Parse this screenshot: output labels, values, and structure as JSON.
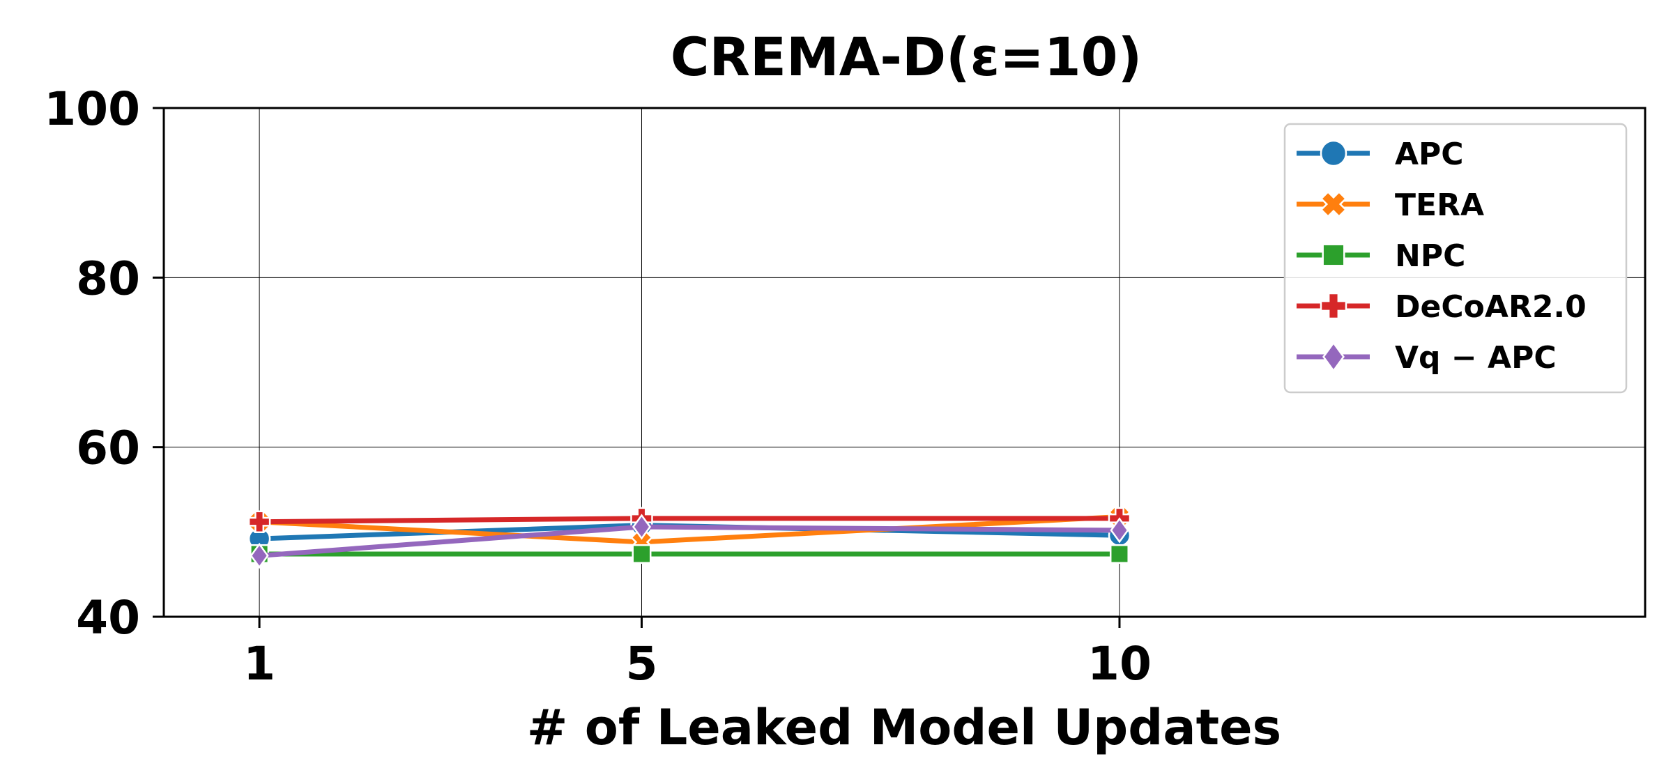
{
  "chart_data": {
    "type": "line",
    "title": "CREMA-D(ε=10)",
    "xlabel": "# of Leaked Model Updates",
    "ylabel": "",
    "x": [
      1,
      5,
      10
    ],
    "xlim": [
      0,
      15.5
    ],
    "ylim": [
      40,
      100
    ],
    "xticks": [
      "1",
      "5",
      "10"
    ],
    "yticks": [
      "40",
      "60",
      "80",
      "100"
    ],
    "grid": true,
    "legend_position": "top-right",
    "series": [
      {
        "name": "APC",
        "values": [
          49.2,
          50.8,
          49.6
        ],
        "color": "#1f77b4",
        "marker": "circle"
      },
      {
        "name": "TERA",
        "values": [
          51.2,
          48.8,
          51.8
        ],
        "color": "#ff7f0e",
        "marker": "x-cross"
      },
      {
        "name": "NPC",
        "values": [
          47.4,
          47.4,
          47.4
        ],
        "color": "#2ca02c",
        "marker": "square"
      },
      {
        "name": "DeCoAR2.0",
        "values": [
          51.2,
          51.6,
          51.6
        ],
        "color": "#d62728",
        "marker": "plus"
      },
      {
        "name": "Vq − APC",
        "values": [
          47.2,
          50.6,
          50.2
        ],
        "color": "#9467bd",
        "marker": "diamond"
      }
    ]
  }
}
